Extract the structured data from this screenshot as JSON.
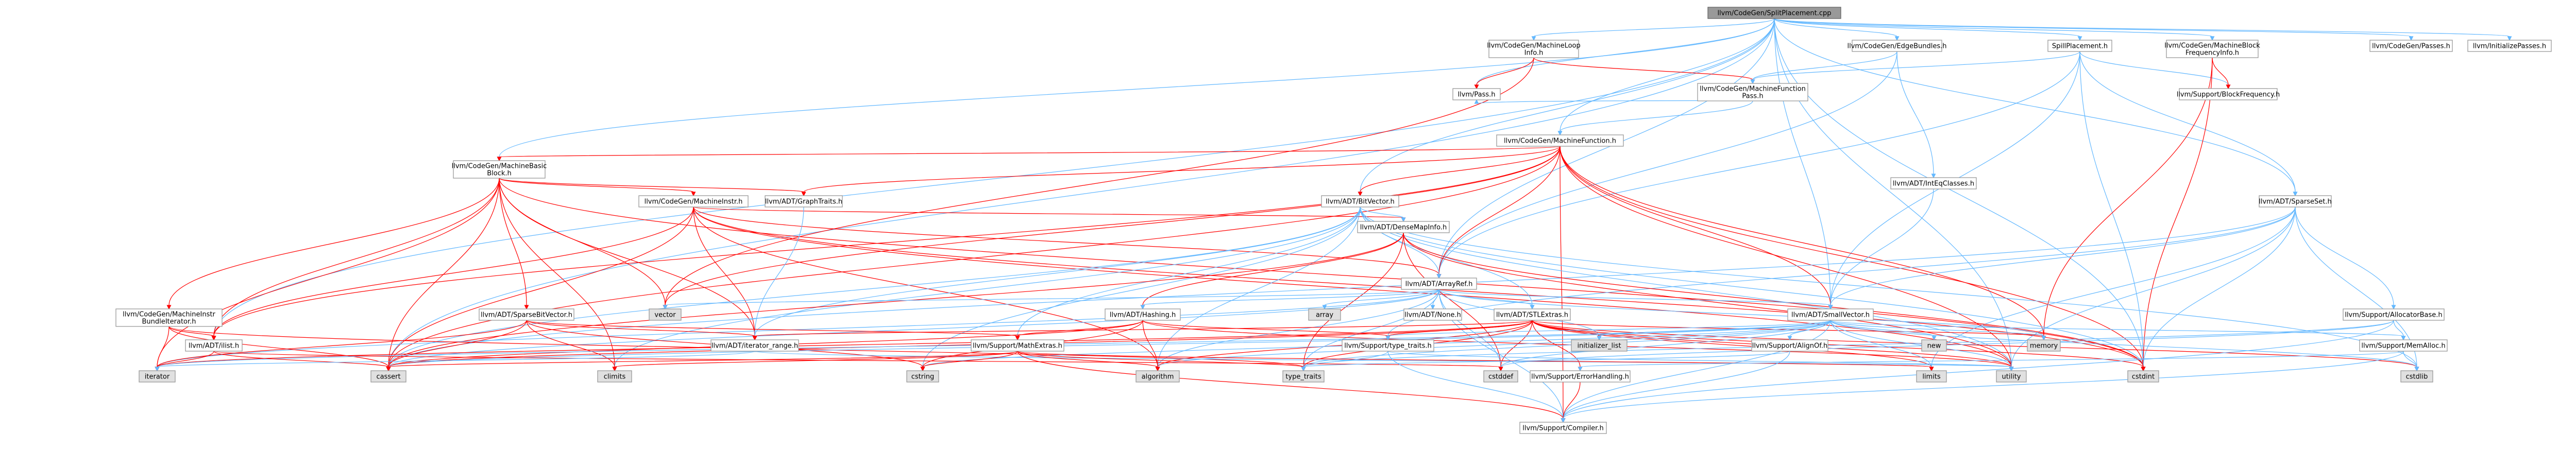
{
  "graph": {
    "root": "root",
    "colors": {
      "root_fill": "#999999",
      "root_stroke": "#666666",
      "node_fill": "#ffffff",
      "node_stroke": "#999999",
      "ext_fill": "#e0e0e0",
      "ext_stroke": "#999999",
      "red_text": "#ff0000",
      "black_text": "#000000",
      "edge_blue": "#63b8ff",
      "edge_red": "#ff0000",
      "edge_gray": "#999999"
    },
    "nodes": [
      {
        "id": "root",
        "lines": [
          "llvm/CodeGen/SplitPlacement.cpp"
        ],
        "kind": "root"
      },
      {
        "id": "mli",
        "lines": [
          "llvm/CodeGen/MachineLoop",
          "Info.h"
        ],
        "kind": "red"
      },
      {
        "id": "eb",
        "lines": [
          "llvm/CodeGen/EdgeBundles.h"
        ],
        "kind": "plain"
      },
      {
        "id": "sph",
        "lines": [
          "SpillPlacement.h"
        ],
        "kind": "plain"
      },
      {
        "id": "mbfi",
        "lines": [
          "llvm/CodeGen/MachineBlock",
          "FrequencyInfo.h"
        ],
        "kind": "red"
      },
      {
        "id": "passes",
        "lines": [
          "llvm/CodeGen/Passes.h"
        ],
        "kind": "red"
      },
      {
        "id": "initp",
        "lines": [
          "llvm/InitializePasses.h"
        ],
        "kind": "plain"
      },
      {
        "id": "mfp",
        "lines": [
          "llvm/CodeGen/MachineFunction",
          "Pass.h"
        ],
        "kind": "plain"
      },
      {
        "id": "bf",
        "lines": [
          "llvm/Support/BlockFrequency.h"
        ],
        "kind": "red"
      },
      {
        "id": "pass",
        "lines": [
          "llvm/Pass.h"
        ],
        "kind": "red"
      },
      {
        "id": "mf",
        "lines": [
          "llvm/CodeGen/MachineFunction.h"
        ],
        "kind": "red"
      },
      {
        "id": "mbb",
        "lines": [
          "llvm/CodeGen/MachineBasic",
          "Block.h"
        ],
        "kind": "red"
      },
      {
        "id": "iec",
        "lines": [
          "llvm/ADT/IntEqClasses.h"
        ],
        "kind": "plain"
      },
      {
        "id": "minstr",
        "lines": [
          "llvm/CodeGen/MachineInstr.h"
        ],
        "kind": "red"
      },
      {
        "id": "gt",
        "lines": [
          "llvm/ADT/GraphTraits.h"
        ],
        "kind": "plain"
      },
      {
        "id": "bv",
        "lines": [
          "llvm/ADT/BitVector.h"
        ],
        "kind": "plain"
      },
      {
        "id": "ss",
        "lines": [
          "llvm/ADT/SparseSet.h"
        ],
        "kind": "plain"
      },
      {
        "id": "dmi",
        "lines": [
          "llvm/ADT/DenseMapInfo.h"
        ],
        "kind": "red"
      },
      {
        "id": "ar",
        "lines": [
          "llvm/ADT/ArrayRef.h"
        ],
        "kind": "plain"
      },
      {
        "id": "mibi",
        "lines": [
          "llvm/CodeGen/MachineInstr",
          "BundleIterator.h"
        ],
        "kind": "red"
      },
      {
        "id": "sbv",
        "lines": [
          "llvm/ADT/SparseBitVector.h"
        ],
        "kind": "red"
      },
      {
        "id": "hash",
        "lines": [
          "llvm/ADT/Hashing.h"
        ],
        "kind": "red"
      },
      {
        "id": "none",
        "lines": [
          "llvm/ADT/None.h"
        ],
        "kind": "plain"
      },
      {
        "id": "stlx",
        "lines": [
          "llvm/ADT/STLExtras.h"
        ],
        "kind": "red"
      },
      {
        "id": "sv",
        "lines": [
          "llvm/ADT/SmallVector.h"
        ],
        "kind": "plain"
      },
      {
        "id": "sab",
        "lines": [
          "llvm/Support/AllocatorBase.h"
        ],
        "kind": "plain"
      },
      {
        "id": "ilist",
        "lines": [
          "llvm/ADT/ilist.h"
        ],
        "kind": "red"
      },
      {
        "id": "itr",
        "lines": [
          "llvm/ADT/iterator_range.h"
        ],
        "kind": "plain"
      },
      {
        "id": "smx",
        "lines": [
          "llvm/Support/MathExtras.h"
        ],
        "kind": "red"
      },
      {
        "id": "stt",
        "lines": [
          "llvm/Support/type_traits.h"
        ],
        "kind": "plain"
      },
      {
        "id": "sao",
        "lines": [
          "llvm/Support/AlignOf.h"
        ],
        "kind": "plain"
      },
      {
        "id": "seh",
        "lines": [
          "llvm/Support/ErrorHandling.h"
        ],
        "kind": "red"
      },
      {
        "id": "smem",
        "lines": [
          "llvm/Support/MemAlloc.h"
        ],
        "kind": "plain"
      },
      {
        "id": "scomp",
        "lines": [
          "llvm/Support/Compiler.h"
        ],
        "kind": "red"
      },
      {
        "id": "vector",
        "lines": [
          "vector"
        ],
        "kind": "ext"
      },
      {
        "id": "array",
        "lines": [
          "array"
        ],
        "kind": "ext"
      },
      {
        "id": "iterator",
        "lines": [
          "iterator"
        ],
        "kind": "ext"
      },
      {
        "id": "cassert",
        "lines": [
          "cassert"
        ],
        "kind": "ext"
      },
      {
        "id": "climits",
        "lines": [
          "climits"
        ],
        "kind": "ext"
      },
      {
        "id": "cstring",
        "lines": [
          "cstring"
        ],
        "kind": "ext"
      },
      {
        "id": "algorithm",
        "lines": [
          "algorithm"
        ],
        "kind": "ext"
      },
      {
        "id": "typetraits",
        "lines": [
          "type_traits"
        ],
        "kind": "ext"
      },
      {
        "id": "cstddef",
        "lines": [
          "cstddef"
        ],
        "kind": "ext"
      },
      {
        "id": "initlist",
        "lines": [
          "initializer_list"
        ],
        "kind": "ext"
      },
      {
        "id": "limits",
        "lines": [
          "limits"
        ],
        "kind": "ext"
      },
      {
        "id": "memory",
        "lines": [
          "memory"
        ],
        "kind": "ext"
      },
      {
        "id": "new",
        "lines": [
          "new"
        ],
        "kind": "ext"
      },
      {
        "id": "utility",
        "lines": [
          "utility"
        ],
        "kind": "ext"
      },
      {
        "id": "cstdint",
        "lines": [
          "cstdint"
        ],
        "kind": "ext"
      },
      {
        "id": "cstdlib",
        "lines": [
          "cstdlib"
        ],
        "kind": "ext"
      }
    ],
    "edges": [
      [
        "root",
        "mli"
      ],
      [
        "root",
        "eb"
      ],
      [
        "root",
        "sph"
      ],
      [
        "root",
        "mbfi"
      ],
      [
        "root",
        "passes"
      ],
      [
        "root",
        "initp"
      ],
      [
        "root",
        "mf"
      ],
      [
        "root",
        "mbb"
      ],
      [
        "root",
        "pass"
      ],
      [
        "root",
        "bv"
      ],
      [
        "root",
        "ar"
      ],
      [
        "root",
        "sv"
      ],
      [
        "root",
        "ss"
      ],
      [
        "root",
        "ilist"
      ],
      [
        "root",
        "cstdint"
      ],
      [
        "root",
        "utility"
      ],
      [
        "root",
        "cassert"
      ],
      [
        "mli",
        "mfp"
      ],
      [
        "mli",
        "pass"
      ],
      [
        "mli",
        "vector"
      ],
      [
        "eb",
        "mfp"
      ],
      [
        "eb",
        "iec"
      ],
      [
        "eb",
        "ar"
      ],
      [
        "sph",
        "mfp"
      ],
      [
        "sph",
        "bf"
      ],
      [
        "sph",
        "ar"
      ],
      [
        "sph",
        "sv"
      ],
      [
        "sph",
        "ss"
      ],
      [
        "sph",
        "cstdint"
      ],
      [
        "mbfi",
        "bf"
      ],
      [
        "mbfi",
        "cstdint"
      ],
      [
        "mbfi",
        "memory"
      ],
      [
        "mfp",
        "mf"
      ],
      [
        "mfp",
        "pass"
      ],
      [
        "mf",
        "mbb"
      ],
      [
        "mf",
        "gt"
      ],
      [
        "mf",
        "bv"
      ],
      [
        "mf",
        "ar"
      ],
      [
        "mf",
        "sv"
      ],
      [
        "mf",
        "ilist"
      ],
      [
        "mf",
        "cassert"
      ],
      [
        "mf",
        "cstdint"
      ],
      [
        "mf",
        "memory"
      ],
      [
        "mf",
        "utility"
      ],
      [
        "mf",
        "vector"
      ],
      [
        "mf",
        "scomp"
      ],
      [
        "mbb",
        "minstr"
      ],
      [
        "mbb",
        "gt"
      ],
      [
        "mbb",
        "mibi"
      ],
      [
        "mbb",
        "sbv"
      ],
      [
        "mbb",
        "itr"
      ],
      [
        "mbb",
        "ilist"
      ],
      [
        "mbb",
        "cassert"
      ],
      [
        "mbb",
        "cstdint"
      ],
      [
        "mbb",
        "iterator"
      ],
      [
        "mbb",
        "vector"
      ],
      [
        "mbb",
        "climits"
      ],
      [
        "iec",
        "sv"
      ],
      [
        "minstr",
        "dmi"
      ],
      [
        "minstr",
        "itr"
      ],
      [
        "minstr",
        "ar"
      ],
      [
        "minstr",
        "algorithm"
      ],
      [
        "minstr",
        "cassert"
      ],
      [
        "minstr",
        "cstdint"
      ],
      [
        "minstr",
        "utility"
      ],
      [
        "minstr",
        "ilist"
      ],
      [
        "gt",
        "itr"
      ],
      [
        "bv",
        "ar"
      ],
      [
        "bv",
        "dmi"
      ],
      [
        "bv",
        "itr"
      ],
      [
        "bv",
        "smx"
      ],
      [
        "bv",
        "algorithm"
      ],
      [
        "bv",
        "cassert"
      ],
      [
        "bv",
        "climits"
      ],
      [
        "bv",
        "cstdint"
      ],
      [
        "bv",
        "cstdlib"
      ],
      [
        "bv",
        "cstring"
      ],
      [
        "bv",
        "utility"
      ],
      [
        "bv",
        "stlx"
      ],
      [
        "ss",
        "sv"
      ],
      [
        "ss",
        "sab"
      ],
      [
        "ss",
        "stt"
      ],
      [
        "ss",
        "cassert"
      ],
      [
        "ss",
        "cstdint"
      ],
      [
        "ss",
        "cstdlib"
      ],
      [
        "ss",
        "limits"
      ],
      [
        "ss",
        "utility"
      ],
      [
        "dmi",
        "hash"
      ],
      [
        "dmi",
        "cassert"
      ],
      [
        "dmi",
        "cstddef"
      ],
      [
        "dmi",
        "cstdint"
      ],
      [
        "dmi",
        "utility"
      ],
      [
        "dmi",
        "typetraits"
      ],
      [
        "ar",
        "hash"
      ],
      [
        "ar",
        "none"
      ],
      [
        "ar",
        "sv"
      ],
      [
        "ar",
        "stlx"
      ],
      [
        "ar",
        "scomp"
      ],
      [
        "ar",
        "algorithm"
      ],
      [
        "ar",
        "array"
      ],
      [
        "ar",
        "cassert"
      ],
      [
        "ar",
        "cstddef"
      ],
      [
        "ar",
        "initlist"
      ],
      [
        "ar",
        "iterator"
      ],
      [
        "ar",
        "memory"
      ],
      [
        "ar",
        "typetraits"
      ],
      [
        "ar",
        "vector"
      ],
      [
        "mibi",
        "ilist"
      ],
      [
        "mibi",
        "cassert"
      ],
      [
        "mibi",
        "iterator"
      ],
      [
        "mibi",
        "typetraits"
      ],
      [
        "sbv",
        "smx"
      ],
      [
        "sbv",
        "cassert"
      ],
      [
        "sbv",
        "climits"
      ],
      [
        "sbv",
        "cstring"
      ],
      [
        "sbv",
        "iterator"
      ],
      [
        "sbv",
        "itr"
      ],
      [
        "hash",
        "smx"
      ],
      [
        "hash",
        "stt"
      ],
      [
        "hash",
        "algorithm"
      ],
      [
        "hash",
        "cassert"
      ],
      [
        "hash",
        "cstring"
      ],
      [
        "hash",
        "string_dummy"
      ],
      [
        "hash",
        "utility"
      ],
      [
        "stlx",
        "itr"
      ],
      [
        "stlx",
        "stt"
      ],
      [
        "stlx",
        "seh"
      ],
      [
        "stlx",
        "algorithm"
      ],
      [
        "stlx",
        "cassert"
      ],
      [
        "stlx",
        "cstddef"
      ],
      [
        "stlx",
        "cstdint"
      ],
      [
        "stlx",
        "cstdlib"
      ],
      [
        "stlx",
        "initlist"
      ],
      [
        "stlx",
        "iterator"
      ],
      [
        "stlx",
        "limits"
      ],
      [
        "stlx",
        "memory"
      ],
      [
        "stlx",
        "typetraits"
      ],
      [
        "stlx",
        "utility"
      ],
      [
        "sv",
        "sao"
      ],
      [
        "sv",
        "scomp"
      ],
      [
        "sv",
        "smem"
      ],
      [
        "sv",
        "stt"
      ],
      [
        "sv",
        "algorithm"
      ],
      [
        "sv",
        "cassert"
      ],
      [
        "sv",
        "cstddef"
      ],
      [
        "sv",
        "cstdlib"
      ],
      [
        "sv",
        "cstring"
      ],
      [
        "sv",
        "functional_dummy"
      ],
      [
        "sv",
        "initlist"
      ],
      [
        "sv",
        "iterator"
      ],
      [
        "sv",
        "limits"
      ],
      [
        "sv",
        "memory"
      ],
      [
        "sv",
        "new"
      ],
      [
        "sv",
        "typetraits"
      ],
      [
        "sv",
        "utility"
      ],
      [
        "sab",
        "scomp"
      ],
      [
        "sab",
        "smem"
      ],
      [
        "sab",
        "cstddef"
      ],
      [
        "sab",
        "typetraits"
      ],
      [
        "ilist",
        "cassert"
      ],
      [
        "ilist",
        "cstddef"
      ],
      [
        "ilist",
        "iterator"
      ],
      [
        "itr",
        "iterator"
      ],
      [
        "itr",
        "utility"
      ],
      [
        "smx",
        "scomp"
      ],
      [
        "smx",
        "algorithm"
      ],
      [
        "smx",
        "cassert"
      ],
      [
        "smx",
        "climits"
      ],
      [
        "smx",
        "cstring"
      ],
      [
        "smx",
        "limits"
      ],
      [
        "smx",
        "typetraits"
      ],
      [
        "stt",
        "typetraits"
      ],
      [
        "stt",
        "utility"
      ],
      [
        "stt",
        "scomp"
      ],
      [
        "sao",
        "scomp"
      ],
      [
        "sao",
        "typetraits"
      ],
      [
        "seh",
        "scomp"
      ],
      [
        "smem",
        "scomp"
      ],
      [
        "smem",
        "seh"
      ],
      [
        "smem",
        "cstdlib"
      ]
    ]
  }
}
